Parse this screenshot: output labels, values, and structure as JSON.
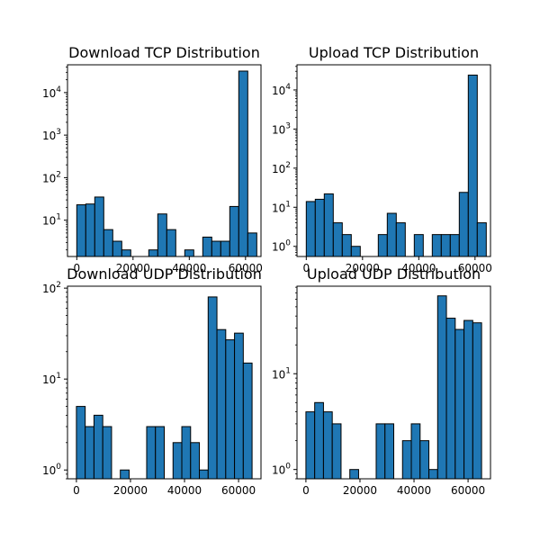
{
  "chart_data": [
    {
      "type": "bar",
      "title": "Download TCP Distribution",
      "xlabel": "",
      "ylabel": "",
      "y_scale": "log",
      "bar_color": "#1f77b4",
      "edge_color": "#000000",
      "xlim": [
        -3300,
        65500
      ],
      "ylim": [
        1.4,
        45000
      ],
      "x_ticks": [
        0,
        20000,
        40000,
        60000
      ],
      "x_tick_labels": [
        "0",
        "20000",
        "40000",
        "60000"
      ],
      "y_ticks": [
        10,
        100,
        1000,
        10000
      ],
      "y_tick_bases": [
        "10",
        "10",
        "10",
        "10"
      ],
      "y_tick_exponents": [
        "1",
        "2",
        "3",
        "4"
      ],
      "bins": [
        {
          "x0": 0,
          "x1": 3200,
          "count": 23
        },
        {
          "x0": 3200,
          "x1": 6400,
          "count": 24
        },
        {
          "x0": 6400,
          "x1": 9600,
          "count": 35
        },
        {
          "x0": 9600,
          "x1": 12800,
          "count": 6
        },
        {
          "x0": 12800,
          "x1": 16000,
          "count": 3.2
        },
        {
          "x0": 16000,
          "x1": 19200,
          "count": 2
        },
        {
          "x0": 19200,
          "x1": 22400,
          "count": 0
        },
        {
          "x0": 22400,
          "x1": 25600,
          "count": 0
        },
        {
          "x0": 25600,
          "x1": 28800,
          "count": 2
        },
        {
          "x0": 28800,
          "x1": 32000,
          "count": 14
        },
        {
          "x0": 32000,
          "x1": 35200,
          "count": 6
        },
        {
          "x0": 35200,
          "x1": 38400,
          "count": 0
        },
        {
          "x0": 38400,
          "x1": 41600,
          "count": 2
        },
        {
          "x0": 41600,
          "x1": 44800,
          "count": 0
        },
        {
          "x0": 44800,
          "x1": 48000,
          "count": 4
        },
        {
          "x0": 48000,
          "x1": 51200,
          "count": 3.2
        },
        {
          "x0": 51200,
          "x1": 54400,
          "count": 3.2
        },
        {
          "x0": 54400,
          "x1": 57600,
          "count": 21
        },
        {
          "x0": 57600,
          "x1": 60800,
          "count": 32000
        },
        {
          "x0": 60800,
          "x1": 64000,
          "count": 5
        }
      ]
    },
    {
      "type": "bar",
      "title": "Upload TCP Distribution",
      "xlabel": "",
      "ylabel": "",
      "y_scale": "log",
      "bar_color": "#1f77b4",
      "edge_color": "#000000",
      "xlim": [
        -3300,
        65500
      ],
      "ylim": [
        0.55,
        44000
      ],
      "x_ticks": [
        0,
        20000,
        40000,
        60000
      ],
      "x_tick_labels": [
        "0",
        "20000",
        "40000",
        "60000"
      ],
      "y_ticks": [
        1,
        10,
        100,
        1000,
        10000
      ],
      "y_tick_bases": [
        "10",
        "10",
        "10",
        "10",
        "10"
      ],
      "y_tick_exponents": [
        "0",
        "1",
        "2",
        "3",
        "4"
      ],
      "bins": [
        {
          "x0": 0,
          "x1": 3200,
          "count": 14
        },
        {
          "x0": 3200,
          "x1": 6400,
          "count": 16
        },
        {
          "x0": 6400,
          "x1": 9600,
          "count": 22
        },
        {
          "x0": 9600,
          "x1": 12800,
          "count": 4
        },
        {
          "x0": 12800,
          "x1": 16000,
          "count": 2
        },
        {
          "x0": 16000,
          "x1": 19200,
          "count": 1
        },
        {
          "x0": 19200,
          "x1": 22400,
          "count": 0
        },
        {
          "x0": 22400,
          "x1": 25600,
          "count": 0
        },
        {
          "x0": 25600,
          "x1": 28800,
          "count": 2
        },
        {
          "x0": 28800,
          "x1": 32000,
          "count": 7
        },
        {
          "x0": 32000,
          "x1": 35200,
          "count": 4
        },
        {
          "x0": 35200,
          "x1": 38400,
          "count": 0
        },
        {
          "x0": 38400,
          "x1": 41600,
          "count": 2
        },
        {
          "x0": 41600,
          "x1": 44800,
          "count": 0
        },
        {
          "x0": 44800,
          "x1": 48000,
          "count": 2
        },
        {
          "x0": 48000,
          "x1": 51200,
          "count": 2
        },
        {
          "x0": 51200,
          "x1": 54400,
          "count": 2
        },
        {
          "x0": 54400,
          "x1": 57600,
          "count": 24
        },
        {
          "x0": 57600,
          "x1": 60800,
          "count": 24000
        },
        {
          "x0": 60800,
          "x1": 64000,
          "count": 4
        }
      ]
    },
    {
      "type": "bar",
      "title": "Download UDP Distribution",
      "xlabel": "",
      "ylabel": "",
      "y_scale": "log",
      "bar_color": "#1f77b4",
      "edge_color": "#000000",
      "xlim": [
        -3300,
        68300
      ],
      "ylim": [
        0.8,
        105
      ],
      "x_ticks": [
        0,
        20000,
        40000,
        60000
      ],
      "x_tick_labels": [
        "0",
        "20000",
        "40000",
        "60000"
      ],
      "y_ticks": [
        1,
        10,
        100
      ],
      "y_tick_bases": [
        "10",
        "10",
        "10"
      ],
      "y_tick_exponents": [
        "0",
        "1",
        "2"
      ],
      "bins": [
        {
          "x0": 0,
          "x1": 3250,
          "count": 5
        },
        {
          "x0": 3250,
          "x1": 6500,
          "count": 3
        },
        {
          "x0": 6500,
          "x1": 9750,
          "count": 4
        },
        {
          "x0": 9750,
          "x1": 13000,
          "count": 3
        },
        {
          "x0": 13000,
          "x1": 16250,
          "count": 0
        },
        {
          "x0": 16250,
          "x1": 19500,
          "count": 1
        },
        {
          "x0": 19500,
          "x1": 22750,
          "count": 0
        },
        {
          "x0": 22750,
          "x1": 26000,
          "count": 0
        },
        {
          "x0": 26000,
          "x1": 29250,
          "count": 3
        },
        {
          "x0": 29250,
          "x1": 32500,
          "count": 3
        },
        {
          "x0": 32500,
          "x1": 35750,
          "count": 0
        },
        {
          "x0": 35750,
          "x1": 39000,
          "count": 2
        },
        {
          "x0": 39000,
          "x1": 42250,
          "count": 3
        },
        {
          "x0": 42250,
          "x1": 45500,
          "count": 2
        },
        {
          "x0": 45500,
          "x1": 48750,
          "count": 1
        },
        {
          "x0": 48750,
          "x1": 52000,
          "count": 80
        },
        {
          "x0": 52000,
          "x1": 55250,
          "count": 35
        },
        {
          "x0": 55250,
          "x1": 58500,
          "count": 27
        },
        {
          "x0": 58500,
          "x1": 61750,
          "count": 32
        },
        {
          "x0": 61750,
          "x1": 65000,
          "count": 15
        }
      ]
    },
    {
      "type": "bar",
      "title": "Upload UDP Distribution",
      "xlabel": "",
      "ylabel": "",
      "y_scale": "log",
      "bar_color": "#1f77b4",
      "edge_color": "#000000",
      "xlim": [
        -3300,
        68300
      ],
      "ylim": [
        0.8,
        82
      ],
      "x_ticks": [
        0,
        20000,
        40000,
        60000
      ],
      "x_tick_labels": [
        "0",
        "20000",
        "40000",
        "60000"
      ],
      "y_ticks": [
        1,
        10
      ],
      "y_tick_bases": [
        "10",
        "10"
      ],
      "y_tick_exponents": [
        "0",
        "1"
      ],
      "bins": [
        {
          "x0": 0,
          "x1": 3250,
          "count": 4
        },
        {
          "x0": 3250,
          "x1": 6500,
          "count": 5
        },
        {
          "x0": 6500,
          "x1": 9750,
          "count": 4
        },
        {
          "x0": 9750,
          "x1": 13000,
          "count": 3
        },
        {
          "x0": 13000,
          "x1": 16250,
          "count": 0
        },
        {
          "x0": 16250,
          "x1": 19500,
          "count": 1
        },
        {
          "x0": 19500,
          "x1": 22750,
          "count": 0
        },
        {
          "x0": 22750,
          "x1": 26000,
          "count": 0
        },
        {
          "x0": 26000,
          "x1": 29250,
          "count": 3
        },
        {
          "x0": 29250,
          "x1": 32500,
          "count": 3
        },
        {
          "x0": 32500,
          "x1": 35750,
          "count": 0
        },
        {
          "x0": 35750,
          "x1": 39000,
          "count": 2
        },
        {
          "x0": 39000,
          "x1": 42250,
          "count": 3
        },
        {
          "x0": 42250,
          "x1": 45500,
          "count": 2
        },
        {
          "x0": 45500,
          "x1": 48750,
          "count": 1
        },
        {
          "x0": 48750,
          "x1": 52000,
          "count": 65
        },
        {
          "x0": 52000,
          "x1": 55250,
          "count": 38
        },
        {
          "x0": 55250,
          "x1": 58500,
          "count": 29
        },
        {
          "x0": 58500,
          "x1": 61750,
          "count": 36
        },
        {
          "x0": 61750,
          "x1": 65000,
          "count": 34
        }
      ]
    }
  ]
}
